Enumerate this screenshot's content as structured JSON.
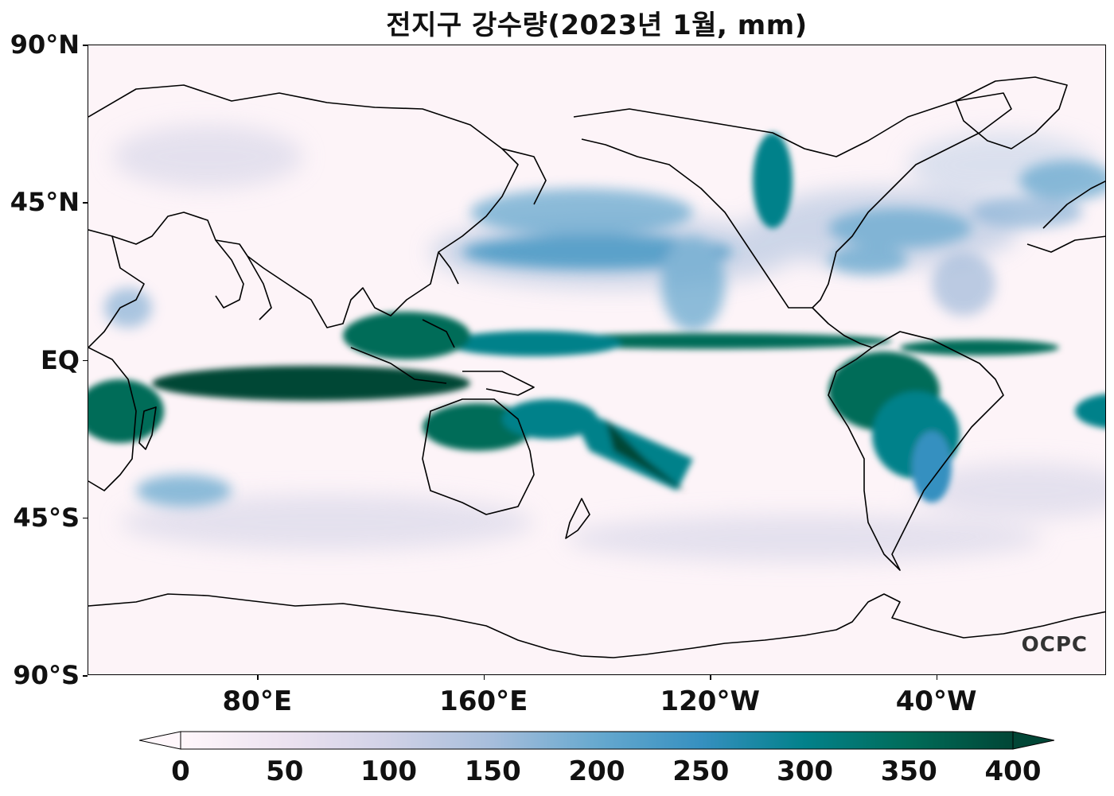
{
  "title": "전지구 강수량(2023년 1월, mm)",
  "watermark": "OCPC",
  "map": {
    "projection": "equirectangular",
    "central_longitude": 200,
    "lat_ticks": [
      {
        "lat": 90,
        "label": "90°N"
      },
      {
        "lat": 45,
        "label": "45°N"
      },
      {
        "lat": 0,
        "label": "EQ"
      },
      {
        "lat": -45,
        "label": "45°S"
      },
      {
        "lat": -90,
        "label": "90°S"
      }
    ],
    "lon_ticks": [
      {
        "lon": 80,
        "label": "80°E"
      },
      {
        "lon": 160,
        "label": "160°E"
      },
      {
        "lon": 240,
        "label": "120°W"
      },
      {
        "lon": 320,
        "label": "40°W"
      }
    ],
    "land_outline_color": "#000000",
    "background_color": "#fdf4f8"
  },
  "colorbar": {
    "min": 0,
    "max": 400,
    "ticks": [
      {
        "value": 0,
        "label": "0"
      },
      {
        "value": 50,
        "label": "50"
      },
      {
        "value": 100,
        "label": "100"
      },
      {
        "value": 150,
        "label": "150"
      },
      {
        "value": 200,
        "label": "200"
      },
      {
        "value": 250,
        "label": "250"
      },
      {
        "value": 300,
        "label": "300"
      },
      {
        "value": 350,
        "label": "350"
      },
      {
        "value": 400,
        "label": "400"
      }
    ],
    "colormap": [
      "#fff7fb",
      "#ece2f0",
      "#d0d1e6",
      "#a6bddb",
      "#67a9cf",
      "#3690c0",
      "#02818a",
      "#016c59",
      "#014636"
    ],
    "extend": "both"
  }
}
